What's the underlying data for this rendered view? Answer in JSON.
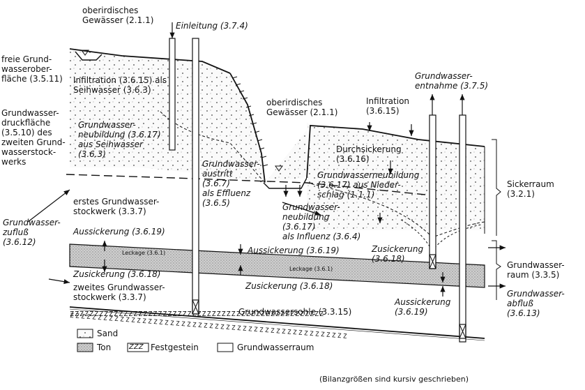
{
  "labels": {
    "ob_gewaesser_1": "oberirdisches\nGewässer (2.1.1)",
    "einleitung": "Einleitung (3.7.4)",
    "freie_gw": "freie Grund-\nwasserober-\nfläche (3.5.11)",
    "infiltration_seih": "Infiltration (3.6.15) als\nSeihwasser (3.6.3)",
    "gw_druckflaeche": "Grundwasser-\ndruckfläche\n(3.5.10) des\nzweiten Grund-\nwasserstock-\nwerks",
    "neubildung_seih": "Grundwasser-\nneubildung (3.6.17)\naus Seihwasser\n(3.6.3)",
    "ob_gewaesser_2": "oberirdisches\nGewässer (2.1.1)",
    "infiltration_2": "Infiltration\n(3.6.15)",
    "gw_entnahme": "Grundwasser-\nentnahme (3.7.5)",
    "durchsickerung": "Durchsickerung\n(3.6.16)",
    "neubildung_nieder": "Grundwasserneubildung\n(3.6.17) aus Nieder-\nschlag (1.1.1)",
    "sickerraum": "Sickerraum\n(3.2.1)",
    "gw_austritt": "Grundwasser-\naustritt\n(3.6.7)\nals Effluenz\n(3.6.5)",
    "neubildung_influenz": "Grundwasser-\nneubildung\n(3.6.17)\nals Influenz (3.6.4)",
    "erstes_stock": "erstes Grundwasser-\nstockwerk (3.3.7)",
    "gw_zufluss": "Grundwasser-\nzufluß\n(3.6.12)",
    "aussickerung_1": "Aussickerung (3.6.19)",
    "leckage_1": "Leckage (3.6.1)",
    "aussickerung_2": "Aussickerung (3.6.19)",
    "zusickerung_1": "Zusickerung\n(3.6.18)",
    "leckage_2": "Leckage (3.6.1)",
    "zusickerung_2": "Zusickerung (3.6.18)",
    "zweites_stock": "zweites Grundwasser-\nstockwerk (3.3.7)",
    "zusickerung_3": "Zusickerung (3.6.18)",
    "gw_raum": "Grundwasser-\nraum (3.3.5)",
    "gw_abfluss": "Grundwasser-\nabfluß\n(3.6.13)",
    "aussickerung_3": "Aussickerung\n(3.6.19)",
    "gw_sohle": "Grundwassersohle (3.3.15)"
  },
  "legend": {
    "sand": "Sand",
    "ton": "Ton",
    "fest_symbol": "ZZZ",
    "festgestein": "Festgestein",
    "gw_raum": "Grundwasserraum"
  },
  "note": "(Bilanzgrößen sind kursiv geschrieben)"
}
